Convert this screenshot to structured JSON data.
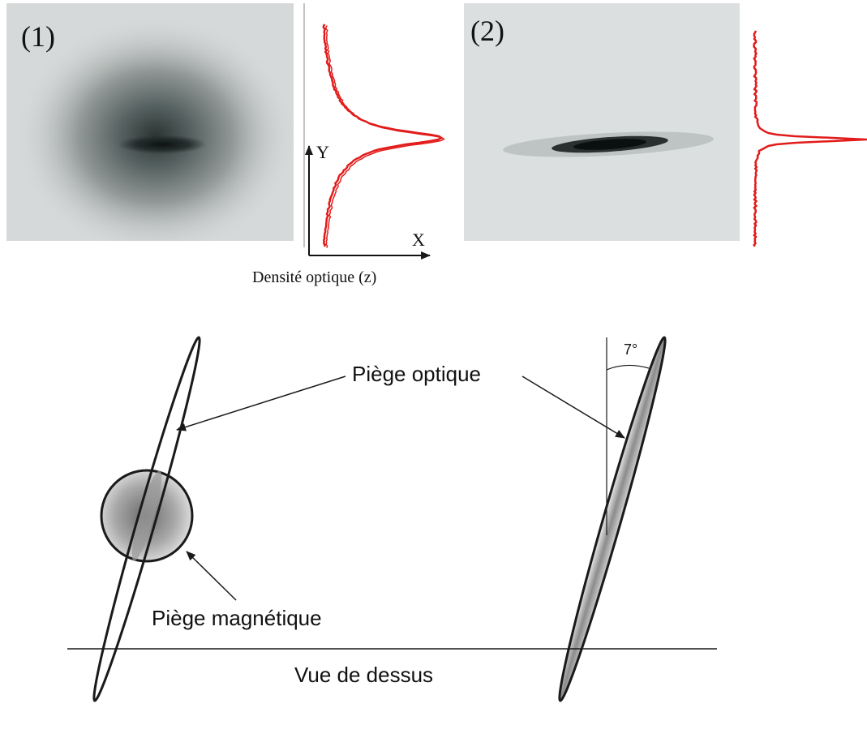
{
  "panels": {
    "panel1": {
      "label": "(1)"
    },
    "panel2": {
      "label": "(2)"
    }
  },
  "axes": {
    "y_label": "Y",
    "x_label": "X",
    "caption": "Densité optique (z)"
  },
  "diagram": {
    "optical_trap_label": "Piège optique",
    "magnetic_trap_label": "Piège magnétique",
    "angle_label": "7°",
    "view_label": "Vue de dessus"
  },
  "colors": {
    "profile_curve": "#e21b1b",
    "outline": "#1a1a1a",
    "image_background": "#d9dcdc"
  }
}
